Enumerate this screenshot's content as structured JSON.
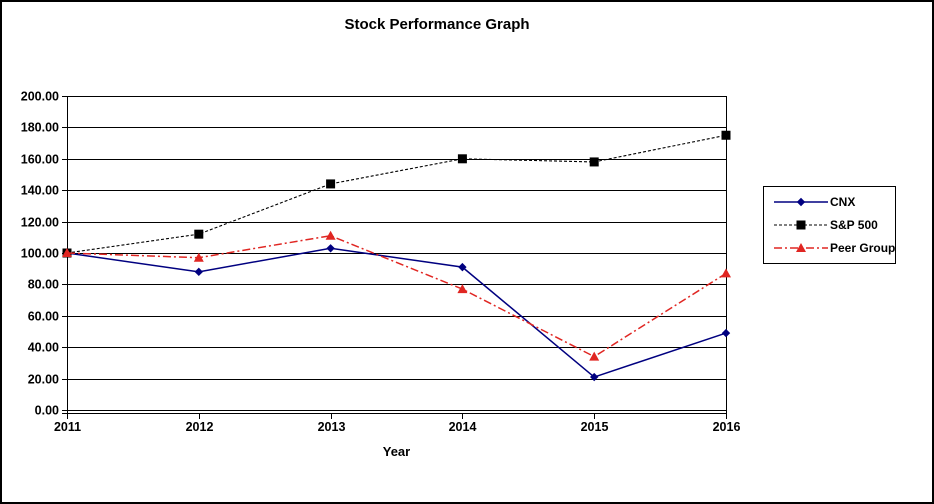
{
  "window": {
    "background": "#ffffff",
    "border_color": "#000000"
  },
  "chart_data": {
    "type": "line",
    "title": "Stock Performance Graph",
    "xlabel": "Year",
    "ylabel": "",
    "categories": [
      "2011",
      "2012",
      "2013",
      "2014",
      "2015",
      "2016"
    ],
    "series": [
      {
        "name": "CNX",
        "values": [
          100,
          88,
          103,
          91,
          21,
          49
        ],
        "color": "#000080",
        "marker": "diamond",
        "line_style": "solid"
      },
      {
        "name": "S&P 500",
        "values": [
          100,
          112,
          144,
          160,
          158,
          175
        ],
        "color": "#000000",
        "marker": "square",
        "line_style": "dashed"
      },
      {
        "name": "Peer Group",
        "values": [
          100,
          97,
          111,
          77,
          34,
          87
        ],
        "color": "#e02622",
        "marker": "triangle",
        "line_style": "dash-dot"
      }
    ],
    "ylim": [
      0,
      200
    ],
    "ytick_step": 20,
    "ytick_labels": [
      "0.00",
      "20.00",
      "40.00",
      "60.00",
      "80.00",
      "100.00",
      "120.00",
      "140.00",
      "160.00",
      "180.00",
      "200.00"
    ],
    "grid": "horizontal",
    "gridline_color": "#000000",
    "axis_color": "#000000",
    "legend_position": "right"
  }
}
